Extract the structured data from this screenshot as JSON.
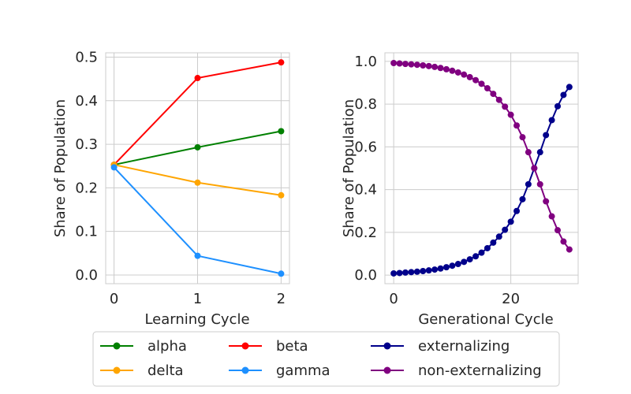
{
  "chart_data": [
    {
      "type": "line",
      "xlabel": "Learning Cycle",
      "ylabel": "Share of Population",
      "xlim": [
        -0.1,
        2.1
      ],
      "ylim": [
        -0.02,
        0.51
      ],
      "xticks": [
        0,
        1,
        2
      ],
      "xtick_labels": [
        "0",
        "1",
        "2"
      ],
      "yticks": [
        0.0,
        0.1,
        0.2,
        0.3,
        0.4,
        0.5
      ],
      "ytick_labels": [
        "0.0",
        "0.1",
        "0.2",
        "0.3",
        "0.4",
        "0.5"
      ],
      "grid": true,
      "x": [
        0,
        1,
        2
      ],
      "series": [
        {
          "name": "alpha",
          "color": "#008000",
          "values": [
            0.253,
            0.293,
            0.33
          ]
        },
        {
          "name": "beta",
          "color": "#ff0000",
          "values": [
            0.253,
            0.452,
            0.488
          ]
        },
        {
          "name": "delta",
          "color": "#ffa500",
          "values": [
            0.253,
            0.212,
            0.183
          ]
        },
        {
          "name": "gamma",
          "color": "#1e90ff",
          "values": [
            0.247,
            0.044,
            0.003
          ]
        }
      ]
    },
    {
      "type": "line",
      "xlabel": "Generational Cycle",
      "ylabel": "Share of Population",
      "xlim": [
        -1.5,
        31.5
      ],
      "ylim": [
        -0.04,
        1.04
      ],
      "xticks": [
        0,
        20
      ],
      "xtick_labels": [
        "0",
        "20"
      ],
      "yticks": [
        0.0,
        0.2,
        0.4,
        0.6,
        0.8,
        1.0
      ],
      "ytick_labels": [
        "0.0",
        "0.2",
        "0.4",
        "0.6",
        "0.8",
        "1.0"
      ],
      "grid": true,
      "x": [
        0,
        1,
        2,
        3,
        4,
        5,
        6,
        7,
        8,
        9,
        10,
        11,
        12,
        13,
        14,
        15,
        16,
        17,
        18,
        19,
        20,
        21,
        22,
        23,
        24,
        25,
        26,
        27,
        28,
        29,
        30
      ],
      "series": [
        {
          "name": "externalizing",
          "color": "#00008b",
          "values": [
            0.008,
            0.01,
            0.012,
            0.014,
            0.016,
            0.019,
            0.022,
            0.026,
            0.031,
            0.037,
            0.044,
            0.052,
            0.062,
            0.074,
            0.088,
            0.105,
            0.126,
            0.152,
            0.18,
            0.212,
            0.25,
            0.3,
            0.355,
            0.425,
            0.5,
            0.575,
            0.655,
            0.725,
            0.79,
            0.843,
            0.88
          ]
        },
        {
          "name": "non-externalizing",
          "color": "#800080",
          "values": [
            0.992,
            0.99,
            0.988,
            0.986,
            0.984,
            0.981,
            0.978,
            0.974,
            0.969,
            0.963,
            0.956,
            0.948,
            0.938,
            0.926,
            0.912,
            0.895,
            0.874,
            0.848,
            0.82,
            0.788,
            0.75,
            0.7,
            0.645,
            0.575,
            0.5,
            0.425,
            0.345,
            0.275,
            0.21,
            0.157,
            0.12
          ]
        }
      ]
    }
  ],
  "legend": {
    "placement": "bottom-center",
    "columns": 3,
    "items": [
      {
        "label": "alpha",
        "color": "#008000"
      },
      {
        "label": "delta",
        "color": "#ffa500"
      },
      {
        "label": "beta",
        "color": "#ff0000"
      },
      {
        "label": "gamma",
        "color": "#1e90ff"
      },
      {
        "label": "externalizing",
        "color": "#00008b"
      },
      {
        "label": "non-externalizing",
        "color": "#800080"
      }
    ]
  }
}
